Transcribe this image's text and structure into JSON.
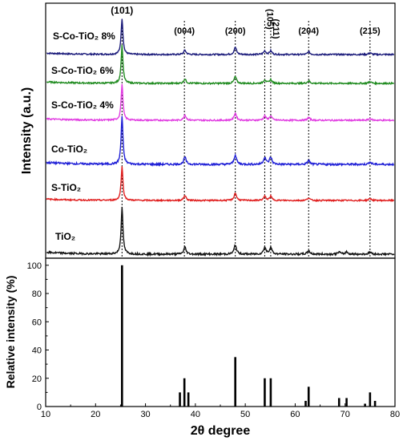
{
  "chart_data": [
    {
      "type": "line",
      "ylabel": "Intensity (a.u.)",
      "xlim": [
        10,
        80
      ],
      "grid": false,
      "legend": "none",
      "peak_markers": [
        {
          "label": "(101)",
          "x": 25.3
        },
        {
          "label": "(004)",
          "x": 37.8
        },
        {
          "label": "(200)",
          "x": 48.0
        },
        {
          "label": "(105)",
          "x": 53.9
        },
        {
          "label": "(211)",
          "x": 55.1
        },
        {
          "label": "(204)",
          "x": 62.7
        },
        {
          "label": "(215)",
          "x": 75.0
        }
      ],
      "series": [
        {
          "name": "S-Co-TiO₂ 8%",
          "color": "#1a1a7a",
          "offset": 5,
          "peaks": [
            [
              25.3,
              1.0
            ],
            [
              37.9,
              0.12
            ],
            [
              48.0,
              0.2
            ],
            [
              53.9,
              0.1
            ],
            [
              55.1,
              0.1
            ],
            [
              62.7,
              0.08
            ],
            [
              75.0,
              0.05
            ]
          ]
        },
        {
          "name": "S-Co-TiO₂ 6%",
          "color": "#1e8a1e",
          "offset": 4,
          "peaks": [
            [
              25.3,
              1.0
            ],
            [
              37.9,
              0.12
            ],
            [
              48.0,
              0.18
            ],
            [
              53.9,
              0.1
            ],
            [
              55.1,
              0.1
            ],
            [
              62.7,
              0.07
            ],
            [
              75.0,
              0.05
            ]
          ]
        },
        {
          "name": "S-Co-TiO₂ 4%",
          "color": "#e13ce1",
          "offset": 3,
          "peaks": [
            [
              25.3,
              1.0
            ],
            [
              37.9,
              0.15
            ],
            [
              48.0,
              0.2
            ],
            [
              53.9,
              0.12
            ],
            [
              55.1,
              0.12
            ],
            [
              62.7,
              0.08
            ],
            [
              75.0,
              0.05
            ]
          ]
        },
        {
          "name": "Co-TiO₂",
          "color": "#1f1fd6",
          "offset": 2,
          "peaks": [
            [
              25.3,
              1.0
            ],
            [
              37.9,
              0.15
            ],
            [
              48.0,
              0.2
            ],
            [
              53.9,
              0.15
            ],
            [
              55.1,
              0.15
            ],
            [
              62.7,
              0.08
            ],
            [
              75.0,
              0.05
            ]
          ]
        },
        {
          "name": "S-TiO₂",
          "color": "#e01e1e",
          "offset": 1,
          "peaks": [
            [
              25.3,
              1.0
            ],
            [
              37.9,
              0.15
            ],
            [
              48.0,
              0.22
            ],
            [
              53.9,
              0.12
            ],
            [
              55.1,
              0.12
            ],
            [
              62.7,
              0.08
            ],
            [
              75.0,
              0.06
            ]
          ]
        },
        {
          "name": "TiO₂",
          "color": "#111111",
          "offset": 0,
          "peaks": [
            [
              25.3,
              1.0
            ],
            [
              37.9,
              0.15
            ],
            [
              48.0,
              0.2
            ],
            [
              53.9,
              0.15
            ],
            [
              55.1,
              0.15
            ],
            [
              62.7,
              0.08
            ],
            [
              68.8,
              0.05
            ],
            [
              70.3,
              0.05
            ],
            [
              75.0,
              0.05
            ]
          ]
        }
      ]
    },
    {
      "type": "bar",
      "xlabel": "2θ degree",
      "ylabel": "Relative intensity (%)",
      "xlim": [
        10,
        80
      ],
      "ylim": [
        0,
        105
      ],
      "xticks": [
        10,
        20,
        30,
        40,
        50,
        60,
        70,
        80
      ],
      "yticks": [
        0,
        20,
        40,
        60,
        80,
        100
      ],
      "grid": false,
      "x": [
        25.3,
        36.9,
        37.8,
        38.6,
        48.0,
        53.9,
        55.1,
        62.1,
        62.7,
        68.8,
        70.3,
        74.0,
        75.0,
        76.0
      ],
      "values": [
        100,
        10,
        20,
        10,
        35,
        20,
        20,
        4,
        14,
        6,
        6,
        2,
        10,
        4
      ]
    }
  ]
}
